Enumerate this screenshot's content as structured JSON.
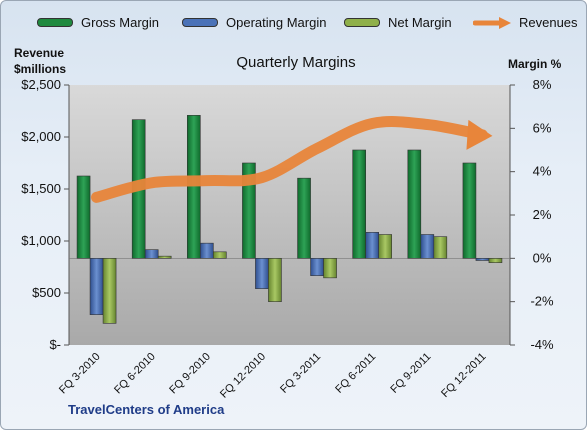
{
  "chart_data": {
    "type": "bar",
    "title": "Quarterly Margins",
    "left_axis_title": "Revenue\n$millions",
    "right_axis_title": "Margin %",
    "categories": [
      "FQ 3-2010",
      "FQ 6-2010",
      "FQ 9-2010",
      "FQ 12-2010",
      "FQ 3-2011",
      "FQ 6-2011",
      "FQ 9-2011",
      "FQ 12-2011"
    ],
    "left_ticks": [
      "$2,500",
      "$2,000",
      "$1,500",
      "$1,000",
      "$500",
      "$-"
    ],
    "right_ticks": [
      "8%",
      "6%",
      "4%",
      "2%",
      "0%",
      "-2%",
      "-4%"
    ],
    "ylim_left": [
      0,
      2500
    ],
    "ylim_right": [
      -4,
      8
    ],
    "series": [
      {
        "name": "Gross Margin",
        "axis": "right",
        "values": [
          3.8,
          6.4,
          6.6,
          4.4,
          3.7,
          5.0,
          5.0,
          4.4
        ]
      },
      {
        "name": "Operating Margin",
        "axis": "right",
        "values": [
          -2.6,
          0.4,
          0.7,
          -1.4,
          -0.8,
          1.2,
          1.1,
          -0.1
        ]
      },
      {
        "name": "Net Margin",
        "axis": "right",
        "values": [
          -3.0,
          0.1,
          0.3,
          -2.0,
          -0.9,
          1.1,
          1.0,
          -0.2
        ]
      },
      {
        "name": "Revenues",
        "axis": "left",
        "values": [
          1420,
          1560,
          1580,
          1610,
          1890,
          2130,
          2120,
          2020
        ]
      }
    ],
    "footer": "TravelCenters of America",
    "colors": {
      "gross": "#1f8a3f",
      "operating": "#4a72b8",
      "net": "#8fb04a",
      "revenue": "#e8853a"
    }
  }
}
